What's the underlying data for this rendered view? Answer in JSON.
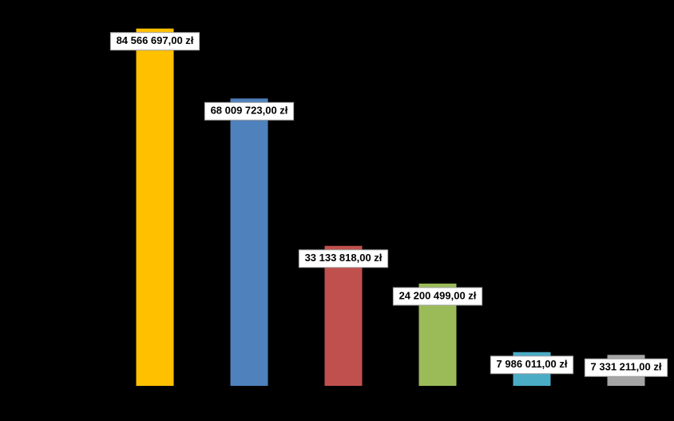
{
  "chart_data": {
    "type": "bar",
    "categories": [
      null,
      null,
      null,
      null,
      null,
      null
    ],
    "values": [
      84566697,
      68009723,
      33133818,
      24200499,
      7986011,
      7331211
    ],
    "value_labels": [
      "84 566 697,00 zł",
      "68 009 723,00 zł",
      "33 133 818,00 zł",
      "24 200 499,00 zł",
      "7 986 011,00 zł",
      "7 331 211,00 zł"
    ],
    "colors": [
      "#FFC000",
      "#4F81BD",
      "#C0504D",
      "#9BBB59",
      "#4BACC6",
      "#A5A5A5"
    ],
    "ylim": [
      0,
      90000000
    ]
  }
}
